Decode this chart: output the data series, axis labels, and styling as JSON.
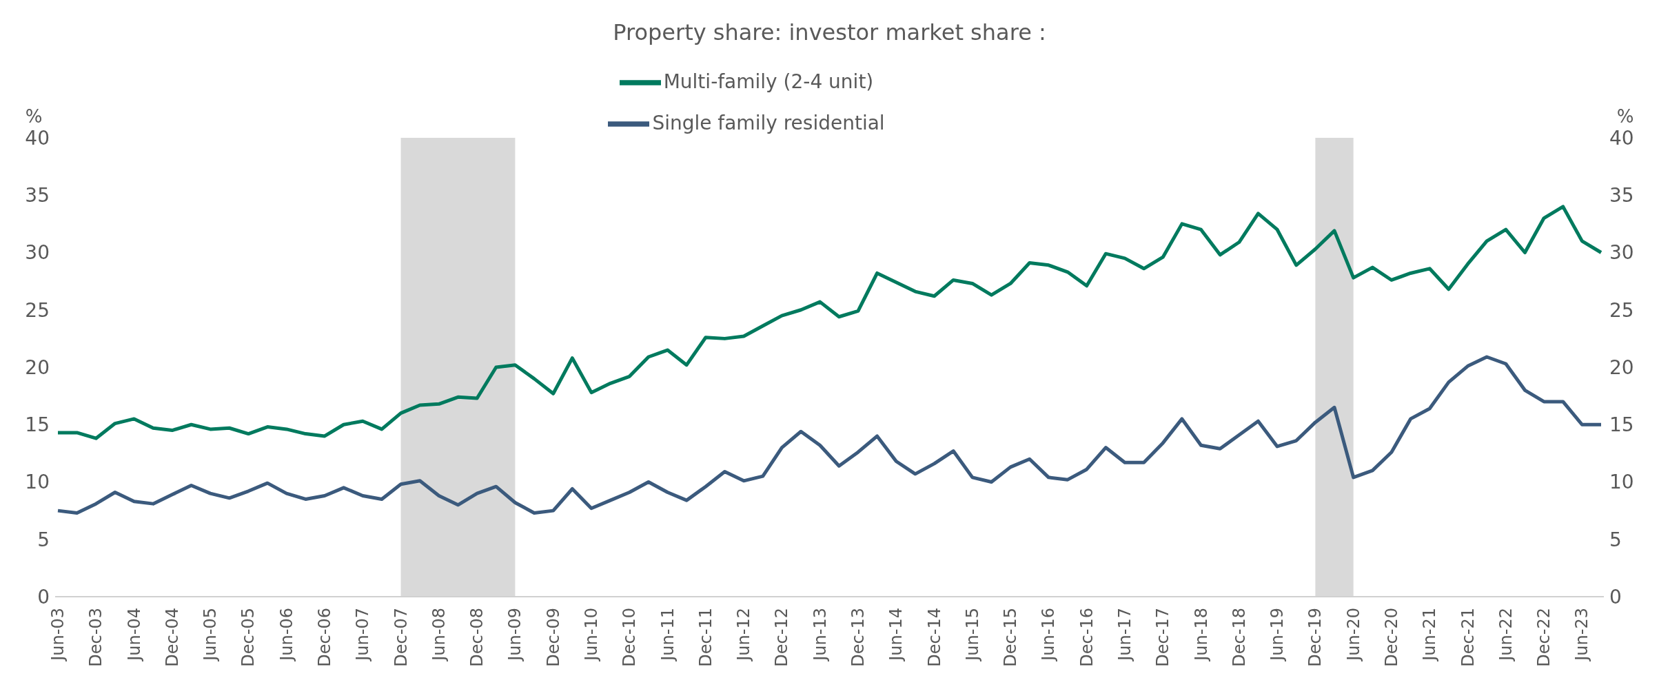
{
  "chart_data": {
    "type": "line",
    "title": "Property share: investor market share :",
    "ylabel": "%",
    "y2label": "%",
    "categories": [
      "Jun-03",
      null,
      "Dec-03",
      null,
      "Jun-04",
      null,
      "Dec-04",
      null,
      "Jun-05",
      null,
      "Dec-05",
      null,
      "Jun-06",
      null,
      "Dec-06",
      null,
      "Jun-07",
      null,
      "Dec-07",
      null,
      "Jun-08",
      null,
      "Dec-08",
      null,
      "Jun-09",
      null,
      "Dec-09",
      null,
      "Jun-10",
      null,
      "Dec-10",
      null,
      "Jun-11",
      null,
      "Dec-11",
      null,
      "Jun-12",
      null,
      "Dec-12",
      null,
      "Jun-13",
      null,
      "Dec-13",
      null,
      "Jun-14",
      null,
      "Dec-14",
      null,
      "Jun-15",
      null,
      "Dec-15",
      null,
      "Jun-16",
      null,
      "Dec-16",
      null,
      "Jun-17",
      null,
      "Dec-17",
      null,
      "Jun-18",
      null,
      "Dec-18",
      null,
      "Jun-19",
      null,
      "Dec-19",
      null,
      "Jun-20",
      null,
      "Dec-20",
      null,
      "Jun-21",
      null,
      "Dec-21",
      null,
      "Jun-22",
      null,
      "Dec-22",
      null,
      "Jun-23",
      null
    ],
    "series": [
      {
        "name": "Multi-family (2-4 unit)",
        "color": "#007a5e",
        "values": [
          14.3,
          14.3,
          13.8,
          15.1,
          15.5,
          14.7,
          14.5,
          15.0,
          14.6,
          14.7,
          14.2,
          14.8,
          14.6,
          14.2,
          14.0,
          15.0,
          15.3,
          14.6,
          16.0,
          16.7,
          16.8,
          17.4,
          17.3,
          20.0,
          20.2,
          19.0,
          17.7,
          20.8,
          17.8,
          18.6,
          19.2,
          20.9,
          21.5,
          20.2,
          22.6,
          22.5,
          22.7,
          23.6,
          24.5,
          25.0,
          25.7,
          24.4,
          24.9,
          28.2,
          27.4,
          26.6,
          26.2,
          27.6,
          27.3,
          26.3,
          27.3,
          29.1,
          28.9,
          28.3,
          27.1,
          29.9,
          29.5,
          28.6,
          29.6,
          32.5,
          32.0,
          29.8,
          30.9,
          33.4,
          32.0,
          28.9,
          30.3,
          31.9,
          27.8,
          28.7,
          27.6,
          28.2,
          28.6,
          26.8,
          29.0,
          31.0,
          32.0,
          30.0,
          33.0,
          34.0,
          31.0,
          30.0
        ]
      },
      {
        "name": "Single family residential",
        "color": "#3b5a7d",
        "values": [
          7.5,
          7.3,
          8.1,
          9.1,
          8.3,
          8.1,
          8.9,
          9.7,
          9.0,
          8.6,
          9.2,
          9.9,
          9.0,
          8.5,
          8.8,
          9.5,
          8.8,
          8.5,
          9.8,
          10.1,
          8.8,
          8.0,
          9.0,
          9.6,
          8.2,
          7.3,
          7.5,
          9.4,
          7.7,
          8.4,
          9.1,
          10.0,
          9.1,
          8.4,
          9.6,
          10.9,
          10.1,
          10.5,
          13.0,
          14.4,
          13.2,
          11.4,
          12.6,
          14.0,
          11.8,
          10.7,
          11.6,
          12.7,
          10.4,
          10.0,
          11.3,
          12.0,
          10.4,
          10.2,
          11.1,
          13.0,
          11.7,
          11.7,
          13.4,
          15.5,
          13.2,
          12.9,
          14.1,
          15.3,
          13.1,
          13.6,
          15.2,
          16.5,
          10.4,
          11.0,
          12.6,
          15.5,
          16.4,
          18.7,
          20.1,
          20.9,
          20.3,
          18.0,
          17.0,
          17.0,
          15.0,
          15.0
        ]
      }
    ],
    "ylim": [
      0,
      40
    ],
    "yticks": [
      0,
      5,
      10,
      15,
      20,
      25,
      30,
      35,
      40
    ],
    "y2lim": [
      0,
      40
    ],
    "y2ticks": [
      0,
      5,
      10,
      15,
      20,
      25,
      30,
      35,
      40
    ],
    "bands": [
      {
        "axis": "x",
        "from": "Dec-07",
        "to": "Jun-09",
        "color": "#d9d9d9"
      },
      {
        "axis": "x",
        "from": "Dec-19",
        "to": "Jun-20",
        "color": "#d9d9d9"
      }
    ],
    "grid": false,
    "legend": "top"
  }
}
